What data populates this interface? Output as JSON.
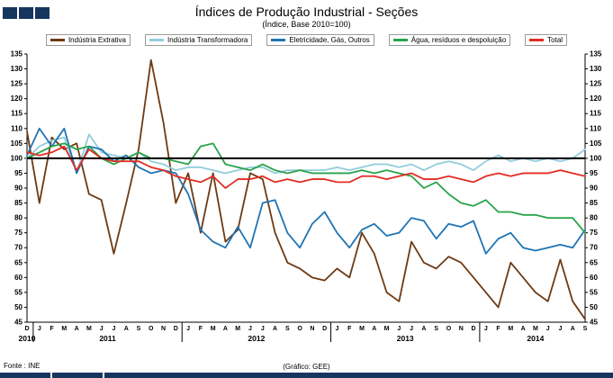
{
  "header": {
    "title": "Índices de Produção Industrial - Seções",
    "subtitle": "(Índice, Base 2010=100)"
  },
  "footer": {
    "source": "Fonte : INE",
    "credit": "(Gráfico: GEE)"
  },
  "chart_data": {
    "type": "line",
    "title": "Índices de Produção Industrial - Seções",
    "subtitle": "(Índice, Base 2010=100)",
    "ylim": [
      45,
      135
    ],
    "ytick_step": 5,
    "baseline": 100,
    "grid": false,
    "legend_position": "top",
    "x_labels": [
      "D",
      "J",
      "F",
      "M",
      "A",
      "M",
      "J",
      "J",
      "A",
      "S",
      "O",
      "N",
      "D",
      "J",
      "F",
      "M",
      "A",
      "M",
      "J",
      "J",
      "A",
      "S",
      "O",
      "N",
      "D",
      "J",
      "F",
      "M",
      "A",
      "M",
      "J",
      "J",
      "A",
      "S",
      "O",
      "N",
      "D",
      "J",
      "F",
      "M",
      "A",
      "M",
      "J",
      "J",
      "A",
      "S"
    ],
    "years": [
      {
        "label": "2010",
        "start": 0,
        "end": 0
      },
      {
        "label": "2011",
        "start": 1,
        "end": 12
      },
      {
        "label": "2012",
        "start": 13,
        "end": 24
      },
      {
        "label": "2013",
        "start": 25,
        "end": 36
      },
      {
        "label": "2014",
        "start": 37,
        "end": 45
      }
    ],
    "series": [
      {
        "name": "Indústria Extrativa",
        "color": "#6D3A14",
        "values": [
          109,
          85,
          107,
          103,
          105,
          88,
          86,
          68,
          85,
          103,
          133,
          112,
          85,
          95,
          75,
          95,
          72,
          76,
          95,
          93,
          75,
          65,
          63,
          60,
          59,
          63,
          60,
          75,
          68,
          55,
          52,
          72,
          65,
          63,
          67,
          65,
          60,
          55,
          50,
          65,
          60,
          55,
          52,
          66,
          52,
          46
        ]
      },
      {
        "name": "Indústria Transformadora",
        "color": "#92CDDC",
        "values": [
          100,
          104,
          106,
          107,
          95,
          108,
          102,
          101,
          100,
          102,
          99,
          98,
          96,
          97,
          97,
          96,
          95,
          96,
          97,
          97,
          95,
          96,
          96,
          96,
          96,
          97,
          96,
          97,
          98,
          98,
          97,
          98,
          96,
          98,
          99,
          98,
          96,
          99,
          101,
          99,
          100,
          99,
          100,
          99,
          100,
          103
        ]
      },
      {
        "name": "Eletricidade, Gás, Outros",
        "color": "#1F74B4",
        "values": [
          101,
          110,
          104,
          110,
          95,
          104,
          103,
          99,
          101,
          97,
          95,
          96,
          95,
          88,
          76,
          72,
          70,
          77,
          70,
          85,
          86,
          75,
          70,
          78,
          82,
          75,
          70,
          76,
          78,
          74,
          75,
          80,
          79,
          73,
          78,
          77,
          79,
          68,
          73,
          75,
          70,
          69,
          70,
          71,
          70,
          76
        ]
      },
      {
        "name": "Água, resíduos e despoluição",
        "color": "#29A349",
        "values": [
          100,
          102,
          104,
          105,
          103,
          104,
          100,
          98,
          100,
          102,
          100,
          100,
          99,
          98,
          104,
          105,
          98,
          97,
          96,
          98,
          96,
          95,
          96,
          95,
          95,
          95,
          95,
          96,
          95,
          96,
          95,
          94,
          90,
          92,
          88,
          85,
          84,
          86,
          82,
          82,
          81,
          81,
          80,
          80,
          80,
          75
        ]
      },
      {
        "name": "Total",
        "color": "#E22D23",
        "values": [
          102,
          101,
          102,
          104,
          96,
          103,
          100,
          99,
          99,
          99,
          97,
          96,
          94,
          93,
          92,
          94,
          90,
          93,
          93,
          94,
          92,
          93,
          92,
          93,
          93,
          92,
          92,
          94,
          94,
          93,
          94,
          95,
          93,
          93,
          94,
          93,
          92,
          94,
          95,
          94,
          95,
          95,
          95,
          96,
          95,
          94
        ]
      }
    ]
  }
}
